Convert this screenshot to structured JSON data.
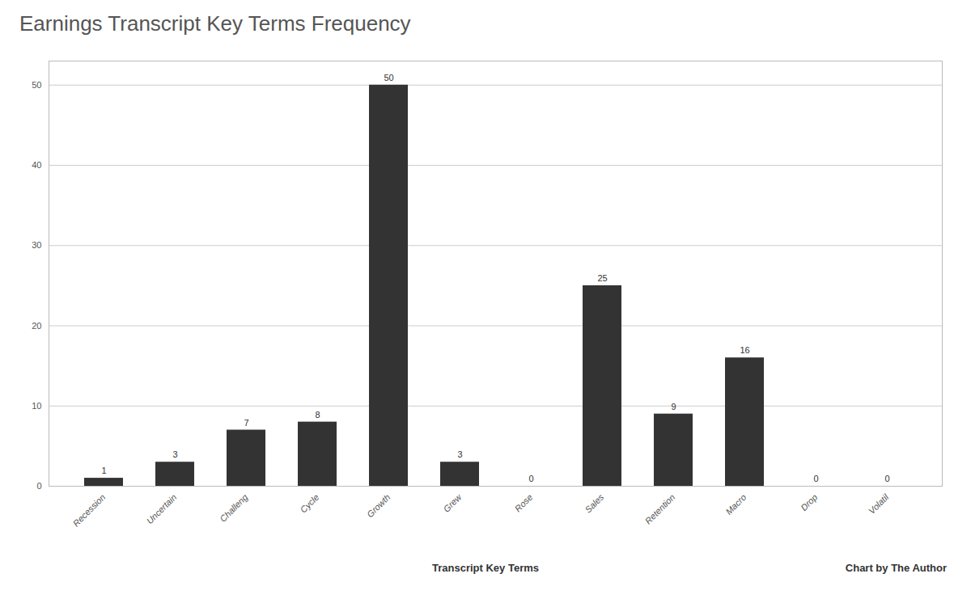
{
  "chart_data": {
    "type": "bar",
    "title": "Earnings Transcript Key Terms Frequency",
    "categories": [
      "Recession",
      "Uncertain",
      "Challeng",
      "Cycle",
      "Growth",
      "Grew",
      "Rose",
      "Sales",
      "Retention",
      "Macro",
      "Drop",
      "Volatil"
    ],
    "values": [
      1,
      3,
      7,
      8,
      50,
      3,
      0,
      25,
      9,
      16,
      0,
      0
    ],
    "color": "#333333",
    "xlabel": "Transcript Key Terms",
    "annotation": "Chart by The Author",
    "ylim": [
      0,
      53
    ],
    "yticks": [
      0,
      10,
      20,
      30,
      40,
      50
    ],
    "grid": true,
    "data_labels": true
  }
}
